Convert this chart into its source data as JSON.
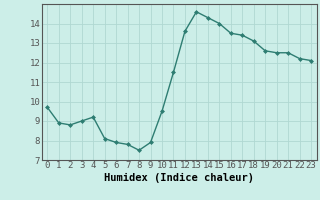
{
  "x": [
    0,
    1,
    2,
    3,
    4,
    5,
    6,
    7,
    8,
    9,
    10,
    11,
    12,
    13,
    14,
    15,
    16,
    17,
    18,
    19,
    20,
    21,
    22,
    23
  ],
  "y": [
    9.7,
    8.9,
    8.8,
    9.0,
    9.2,
    8.1,
    7.9,
    7.8,
    7.5,
    7.9,
    9.5,
    11.5,
    13.6,
    14.6,
    14.3,
    14.0,
    13.5,
    13.4,
    13.1,
    12.6,
    12.5,
    12.5,
    12.2,
    12.1
  ],
  "xlabel": "Humidex (Indice chaleur)",
  "ylim": [
    7,
    15
  ],
  "xlim": [
    -0.5,
    23.5
  ],
  "yticks": [
    7,
    8,
    9,
    10,
    11,
    12,
    13,
    14
  ],
  "xticks": [
    0,
    1,
    2,
    3,
    4,
    5,
    6,
    7,
    8,
    9,
    10,
    11,
    12,
    13,
    14,
    15,
    16,
    17,
    18,
    19,
    20,
    21,
    22,
    23
  ],
  "line_color": "#2e7d72",
  "marker": "D",
  "marker_size": 2.0,
  "bg_color": "#cceee8",
  "grid_color": "#b0d8d2",
  "axis_color": "#555555",
  "xlabel_fontsize": 7.5,
  "tick_fontsize": 6.5,
  "linewidth": 1.0
}
